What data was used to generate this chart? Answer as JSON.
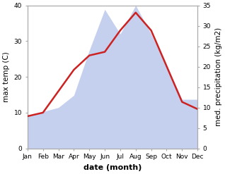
{
  "months": [
    "Jan",
    "Feb",
    "Mar",
    "Apr",
    "May",
    "Jun",
    "Jul",
    "Aug",
    "Sep",
    "Oct",
    "Nov",
    "Dec"
  ],
  "temperature": [
    9,
    10,
    16,
    22,
    26,
    27,
    33,
    38,
    33,
    23,
    13,
    11
  ],
  "precipitation": [
    8,
    9,
    10,
    13,
    24,
    34,
    28,
    35,
    28,
    20,
    12,
    12
  ],
  "temp_color": "#cc2222",
  "precip_fill_color": "#c5d0ef",
  "temp_ylim": [
    0,
    40
  ],
  "precip_ylim": [
    0,
    35
  ],
  "temp_yticks": [
    0,
    10,
    20,
    30,
    40
  ],
  "precip_yticks": [
    0,
    5,
    10,
    15,
    20,
    25,
    30,
    35
  ],
  "xlabel": "date (month)",
  "ylabel_left": "max temp (C)",
  "ylabel_right": "med. precipitation (kg/m2)",
  "bg_color": "#ffffff",
  "line_width": 1.8,
  "tick_fontsize": 6.5,
  "label_fontsize": 7.5,
  "xlabel_fontsize": 8,
  "xlabel_bold": true
}
